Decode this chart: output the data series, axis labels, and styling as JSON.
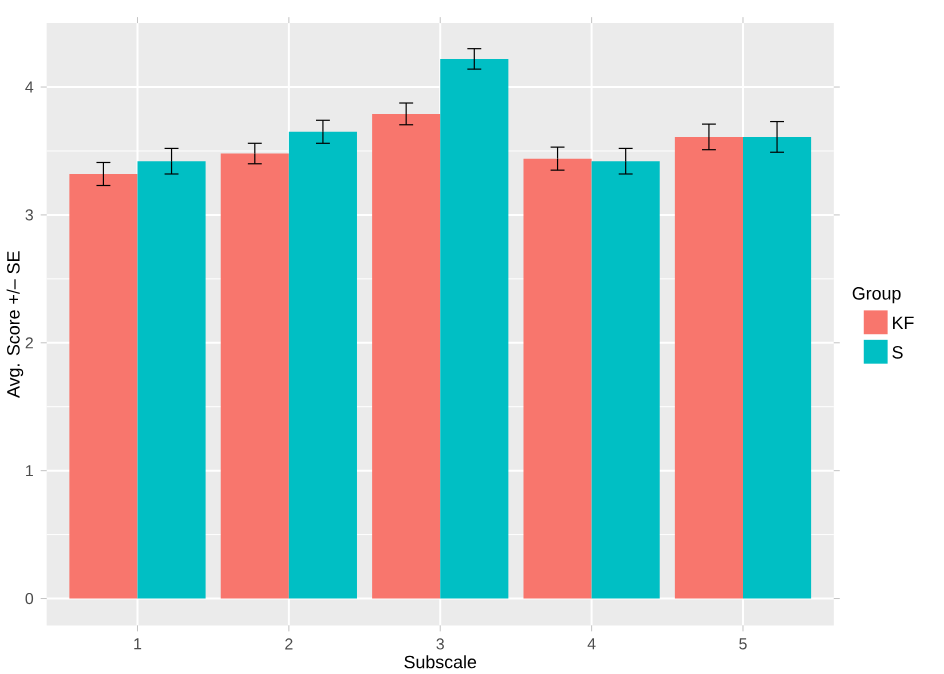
{
  "chart_data": {
    "type": "bar",
    "xlabel": "Subscale",
    "ylabel": "Avg. Score +/– SE",
    "legend_title": "Group",
    "categories": [
      "1",
      "2",
      "3",
      "4",
      "5"
    ],
    "series": [
      {
        "name": "KF",
        "color": "#f8766d",
        "values": [
          3.32,
          3.48,
          3.79,
          3.44,
          3.61
        ],
        "errors": [
          0.09,
          0.08,
          0.085,
          0.09,
          0.1
        ]
      },
      {
        "name": "S",
        "color": "#00bfc4",
        "values": [
          3.42,
          3.65,
          4.22,
          3.42,
          3.61
        ],
        "errors": [
          0.1,
          0.09,
          0.08,
          0.1,
          0.12
        ]
      }
    ],
    "ylim": [
      -0.21,
      4.5
    ],
    "yticks": [
      0,
      1,
      2,
      3,
      4
    ],
    "grid": true,
    "legend": "right"
  }
}
